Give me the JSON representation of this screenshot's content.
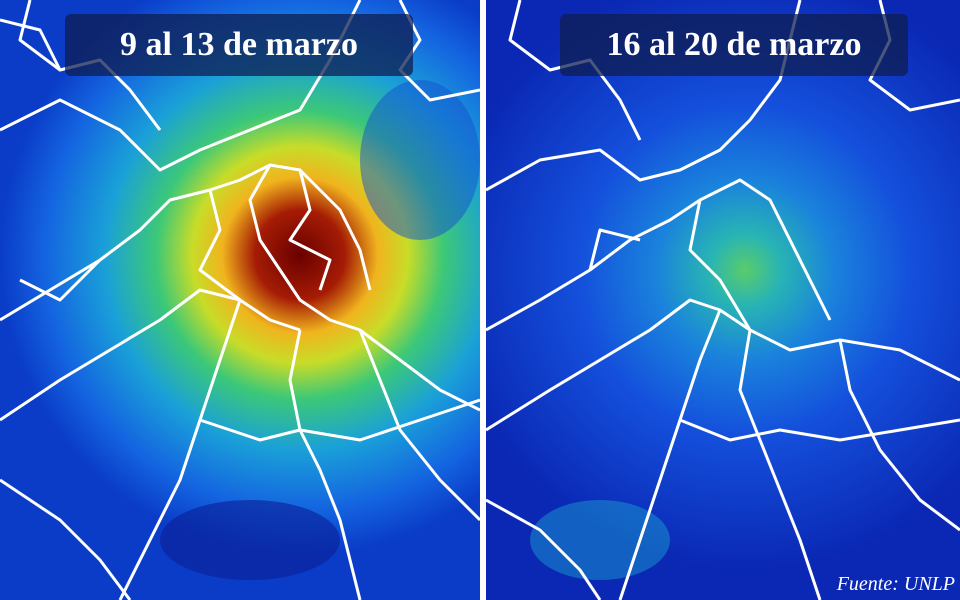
{
  "panels": [
    {
      "title": "9 al 13 de marzo"
    },
    {
      "title": "16 al 20 de marzo"
    }
  ],
  "source": "Fuente: UNLP"
}
